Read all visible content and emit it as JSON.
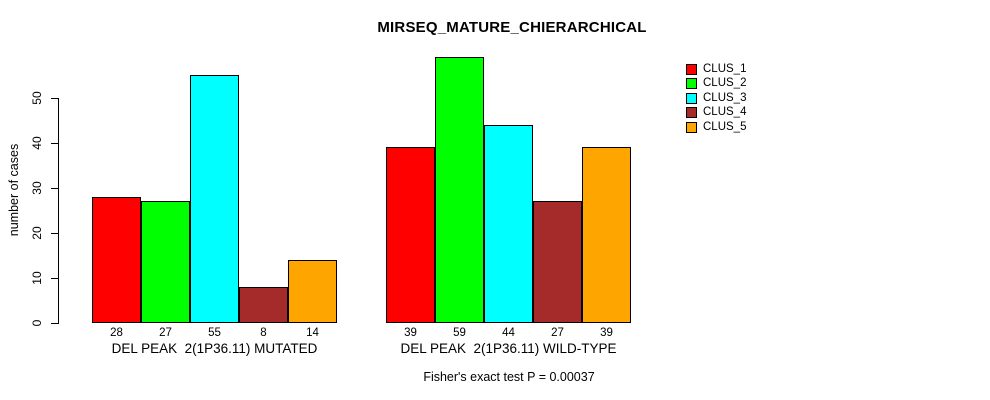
{
  "chart_data": {
    "type": "bar",
    "title": "MIRSEQ_MATURE_CHIERARCHICAL",
    "ylabel": "number of cases",
    "xlabel": "",
    "ylim": [
      0,
      59
    ],
    "yticks": [
      0,
      10,
      20,
      30,
      40,
      50
    ],
    "grid": false,
    "legend_position": "top-right",
    "series": [
      "CLUS_1",
      "CLUS_2",
      "CLUS_3",
      "CLUS_4",
      "CLUS_5"
    ],
    "colors": [
      "#ff0000",
      "#00ff00",
      "#00ffff",
      "#a52a2a",
      "#ffa500"
    ],
    "groups": [
      {
        "label": "DEL PEAK  2(1P36.11) MUTATED",
        "values": [
          28,
          27,
          55,
          8,
          14
        ]
      },
      {
        "label": "DEL PEAK  2(1P36.11) WILD-TYPE",
        "values": [
          39,
          59,
          44,
          27,
          39
        ]
      }
    ],
    "bar_value_labels": true,
    "annotation": "Fisher's exact test P = 0.00037"
  }
}
